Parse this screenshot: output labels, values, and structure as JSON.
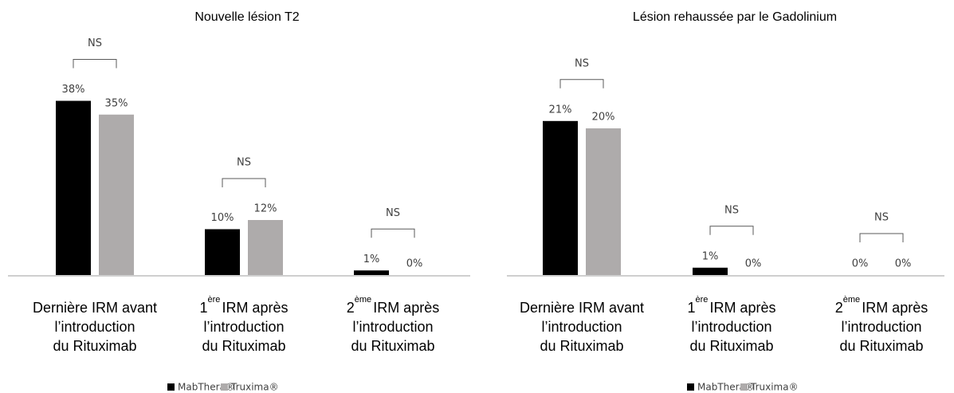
{
  "chart_data": [
    {
      "type": "bar",
      "title": "Nouvelle lésion T2",
      "categories": [
        [
          {
            "text": "Dernière IRM avant"
          },
          {
            "text": "l’introduction"
          },
          {
            "text": "du Rituximab"
          }
        ],
        [
          {
            "text": "1",
            "sup": "ère",
            "rest": "IRM après"
          },
          {
            "text": "l’introduction"
          },
          {
            "text": "du Rituximab"
          }
        ],
        [
          {
            "text": "2",
            "sup": "ème",
            "rest": "IRM après"
          },
          {
            "text": "l’introduction"
          },
          {
            "text": "du Rituximab"
          }
        ]
      ],
      "series": [
        {
          "name": "MabThera®",
          "color": "#000000",
          "values": [
            38,
            10,
            1
          ],
          "value_labels": [
            "38%",
            "10%",
            "1%"
          ]
        },
        {
          "name": "Truxima®",
          "color": "#aeabab",
          "values": [
            35,
            12,
            0
          ],
          "value_labels": [
            "35%",
            "12%",
            "0%"
          ]
        }
      ],
      "annotations": [
        "NS",
        "NS",
        "NS"
      ],
      "ylim": [
        0,
        40
      ]
    },
    {
      "type": "bar",
      "title": "Lésion rehaussée par le Gadolinium",
      "categories": [
        [
          {
            "text": "Dernière IRM avant"
          },
          {
            "text": "l’introduction"
          },
          {
            "text": "du Rituximab"
          }
        ],
        [
          {
            "text": "1",
            "sup": "ère",
            "rest": "IRM après"
          },
          {
            "text": "l’introduction"
          },
          {
            "text": "du Rituximab"
          }
        ],
        [
          {
            "text": "2",
            "sup": "ème",
            "rest": "IRM après"
          },
          {
            "text": "l’introduction"
          },
          {
            "text": "du Rituximab"
          }
        ]
      ],
      "series": [
        {
          "name": "MabThera®",
          "color": "#000000",
          "values": [
            21,
            1,
            0
          ],
          "value_labels": [
            "21%",
            "1%",
            "0%"
          ]
        },
        {
          "name": "Truxima®",
          "color": "#aeabab",
          "values": [
            20,
            0,
            0
          ],
          "value_labels": [
            "20%",
            "0%",
            "0%"
          ]
        }
      ],
      "annotations": [
        "NS",
        "NS",
        "NS"
      ],
      "ylim": [
        0,
        25
      ]
    }
  ]
}
